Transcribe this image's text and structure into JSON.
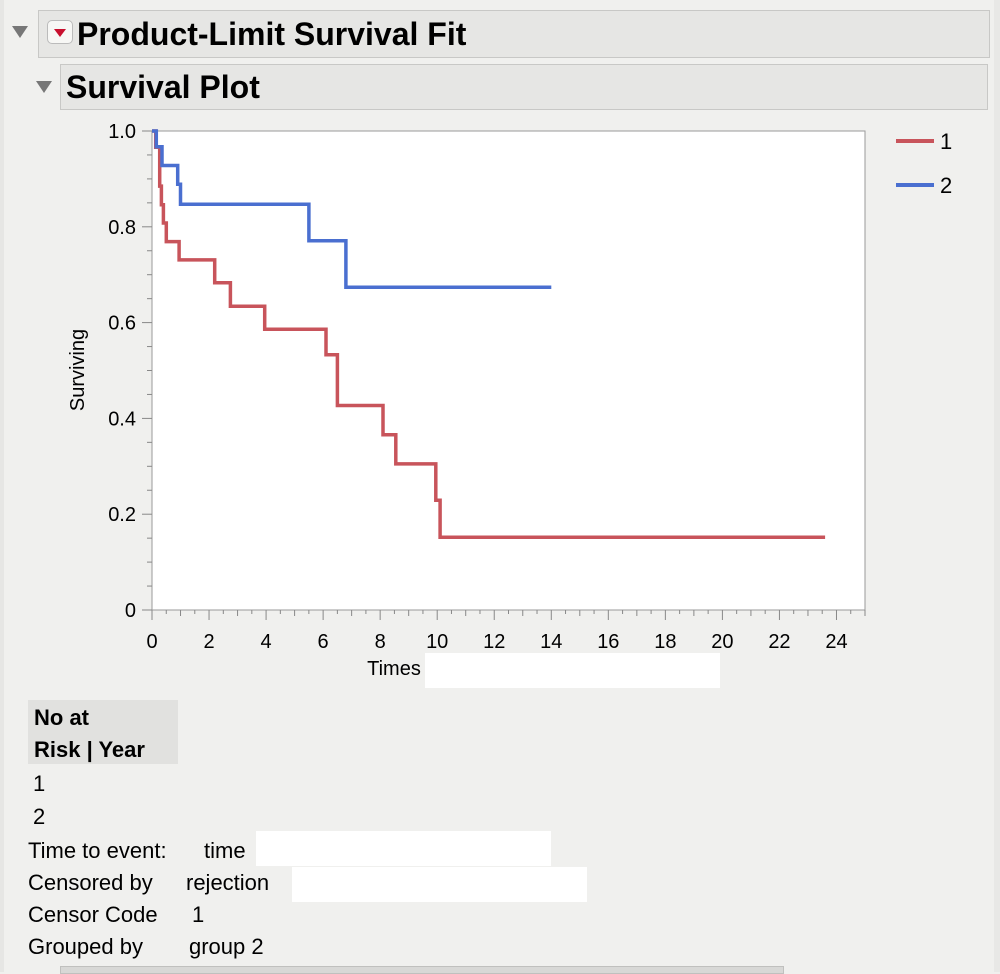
{
  "report": {
    "title": "Product-Limit Survival Fit",
    "plot_title": "Survival Plot"
  },
  "chart_data": {
    "type": "line",
    "step": true,
    "xlabel": "Times",
    "ylabel": "Surviving",
    "xlim": [
      0,
      25
    ],
    "ylim": [
      0,
      1
    ],
    "xticks": [
      "0",
      "2",
      "4",
      "6",
      "8",
      "10",
      "12",
      "14",
      "16",
      "18",
      "20",
      "22",
      "24"
    ],
    "yticks": [
      "0",
      "0.2",
      "0.4",
      "0.6",
      "0.8",
      "1.0"
    ],
    "legend_position": "right",
    "series": [
      {
        "name": "1",
        "color": "#c8545b",
        "x": [
          0,
          0.13,
          0.27,
          0.33,
          0.4,
          0.5,
          0.95,
          2.2,
          2.75,
          3.95,
          6.1,
          6.5,
          8.1,
          8.55,
          9.95,
          10.1,
          23.6
        ],
        "y": [
          1.0,
          0.966,
          0.885,
          0.846,
          0.808,
          0.769,
          0.731,
          0.683,
          0.634,
          0.586,
          0.533,
          0.427,
          0.366,
          0.305,
          0.229,
          0.152,
          0.152
        ]
      },
      {
        "name": "2",
        "color": "#4a6fd0",
        "x": [
          0,
          0.15,
          0.35,
          0.9,
          1.0,
          5.5,
          6.8,
          14.0
        ],
        "y": [
          1.0,
          0.967,
          0.928,
          0.889,
          0.847,
          0.771,
          0.674,
          0.674
        ]
      }
    ]
  },
  "risk_table": {
    "header_line1": "No at",
    "header_line2": "Risk | Year",
    "groups": [
      "1",
      "2"
    ]
  },
  "info": {
    "time_label": "Time to event:",
    "time_value": "time",
    "censor_label": "Censored by",
    "censor_value": "rejection",
    "code_label": "Censor Code",
    "code_value": "1",
    "group_label": "Grouped by",
    "group_value": "group 2"
  }
}
